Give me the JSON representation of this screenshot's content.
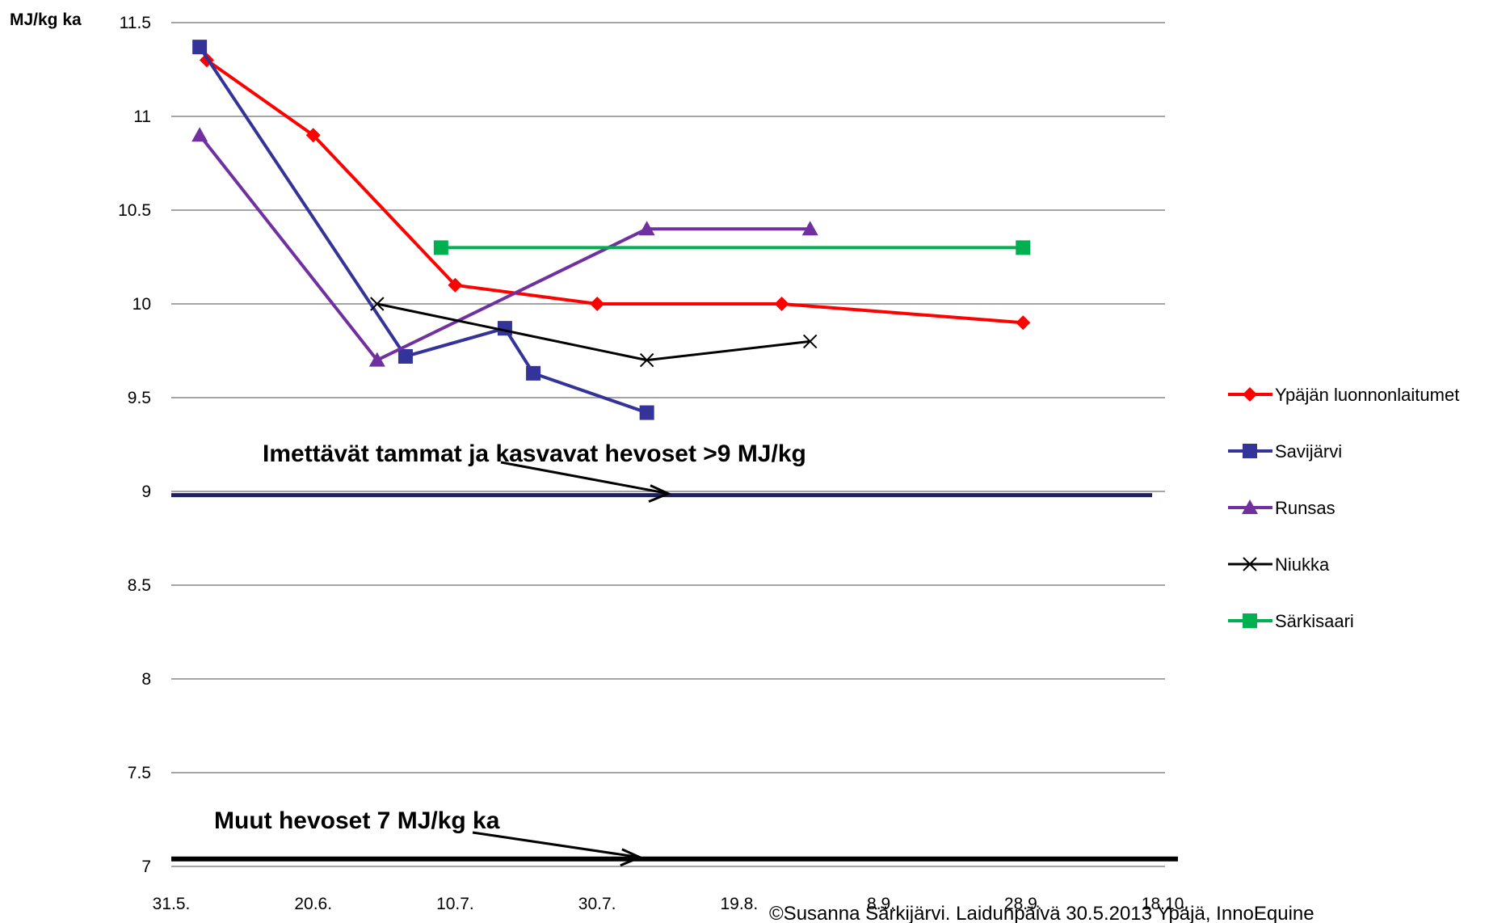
{
  "chart_data": {
    "type": "line",
    "ylabel": "MJ/kg ka",
    "ylim": [
      7,
      11.5
    ],
    "yticks": [
      "11.5",
      "11",
      "10.5",
      "10",
      "9.5",
      "9",
      "8.5",
      "8",
      "7.5",
      "7"
    ],
    "xlim": [
      "2013-05-31",
      "2013-10-18"
    ],
    "xticks": [
      "31.5.",
      "20.6.",
      "10.7.",
      "30.7.",
      "19.8.",
      "8.9.",
      "28.9.",
      "18.10."
    ],
    "grid": true,
    "legend_position": "right",
    "series": [
      {
        "name": "Ypäjän luonnonlaitumet",
        "color": "#ff0000",
        "marker": "diamond",
        "x": [
          "2013-06-05",
          "2013-06-20",
          "2013-07-10",
          "2013-07-30",
          "2013-08-25",
          "2013-09-28"
        ],
        "y": [
          11.3,
          10.9,
          10.1,
          10.0,
          10.0,
          9.9
        ]
      },
      {
        "name": "Savijärvi",
        "color": "#333399",
        "marker": "square",
        "x": [
          "2013-06-04",
          "2013-07-03",
          "2013-07-17",
          "2013-07-21",
          "2013-08-06"
        ],
        "y": [
          11.37,
          9.72,
          9.87,
          9.63,
          9.42
        ]
      },
      {
        "name": "Runsas",
        "color": "#7030a0",
        "marker": "triangle",
        "x": [
          "2013-06-04",
          "2013-06-29",
          "2013-08-06",
          "2013-08-29"
        ],
        "y": [
          10.9,
          9.7,
          10.4,
          10.4
        ]
      },
      {
        "name": "Niukka",
        "color": "#000000",
        "marker": "x",
        "x": [
          "2013-06-29",
          "2013-08-06",
          "2013-08-29"
        ],
        "y": [
          10.0,
          9.7,
          9.8
        ]
      },
      {
        "name": "Särkisaari",
        "color": "#00b050",
        "marker": "square",
        "x": [
          "2013-07-08",
          "2013-09-28"
        ],
        "y": [
          10.3,
          10.3
        ]
      }
    ],
    "reference_lines": [
      {
        "y": 8.98,
        "color": "#1f1f5c",
        "label": "Imettävät tammat ja kasvavat hevoset >9 MJ/kg",
        "arrow_to_x": "2013-08-09"
      },
      {
        "y": 7.04,
        "color": "#000000",
        "label": "Muut hevoset 7 MJ/kg ka",
        "arrow_to_x": "2013-08-05"
      }
    ]
  },
  "credit": "©Susanna Särkijärvi. Laidunpäivä 30.5.2013 Ypäjä, InnoEquine"
}
